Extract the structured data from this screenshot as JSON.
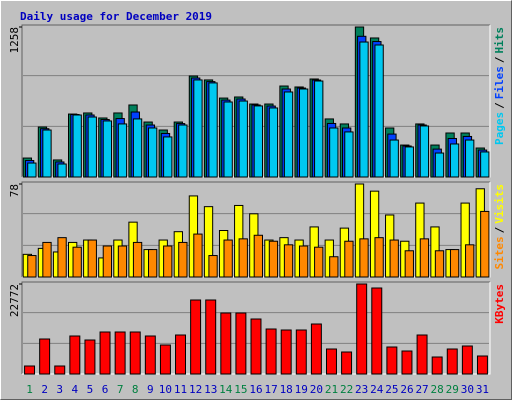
{
  "chart_data": [
    {
      "type": "bar",
      "title": "Daily usage for December 2019",
      "ylim": [
        0,
        1258
      ],
      "yticks": [
        1258
      ],
      "legend_separator": "/",
      "series": [
        {
          "name": "Hits",
          "color": "#00805c",
          "values": [
            159,
            419,
            143,
            528,
            537,
            495,
            537,
            604,
            461,
            394,
            461,
            847,
            814,
            662,
            671,
            612,
            612,
            763,
            755,
            822,
            487,
            445,
            1258,
            1166,
            411,
            268,
            445,
            268,
            369,
            369,
            243
          ]
        },
        {
          "name": "Files",
          "color": "#0040ff",
          "values": [
            138,
            405,
            126,
            524,
            520,
            482,
            490,
            545,
            436,
            365,
            448,
            830,
            800,
            645,
            654,
            604,
            595,
            738,
            746,
            813,
            449,
            411,
            1180,
            1136,
            360,
            260,
            436,
            234,
            323,
            340,
            226
          ]
        },
        {
          "name": "Pages",
          "color": "#00c8f0",
          "values": [
            117,
            394,
            109,
            520,
            503,
            470,
            445,
            487,
            411,
            336,
            436,
            814,
            789,
            629,
            637,
            596,
            579,
            713,
            738,
            805,
            411,
            378,
            1132,
            1107,
            310,
            252,
            428,
            201,
            277,
            310,
            210
          ]
        }
      ]
    },
    {
      "type": "bar",
      "ylim": [
        0,
        78
      ],
      "yticks": [
        78
      ],
      "legend_separator": "/",
      "series": [
        {
          "name": "Visits",
          "color": "#ffff00",
          "values": [
            19,
            24,
            21,
            29,
            31,
            16,
            31,
            46,
            23,
            31,
            38,
            68,
            59,
            39,
            60,
            53,
            31,
            33,
            31,
            42,
            31,
            41,
            78,
            72,
            52,
            30,
            62,
            42,
            23,
            62,
            74
          ]
        },
        {
          "name": "Sites",
          "color": "#ff8800",
          "values": [
            18,
            29,
            33,
            25,
            31,
            26,
            26,
            29,
            23,
            26,
            29,
            36,
            18,
            31,
            32,
            35,
            30,
            27,
            26,
            25,
            17,
            30,
            32,
            33,
            31,
            22,
            32,
            22,
            23,
            27,
            55
          ]
        }
      ]
    },
    {
      "type": "bar",
      "ylim": [
        0,
        22772
      ],
      "yticks": [
        22772
      ],
      "categories": [
        "1",
        "2",
        "3",
        "4",
        "5",
        "6",
        "7",
        "8",
        "9",
        "10",
        "11",
        "12",
        "13",
        "14",
        "15",
        "16",
        "17",
        "18",
        "19",
        "20",
        "21",
        "22",
        "23",
        "24",
        "25",
        "26",
        "27",
        "28",
        "29",
        "30",
        "31"
      ],
      "category_colors": [
        "#008040",
        "#0000c0",
        "#0000c0",
        "#0000c0",
        "#0000c0",
        "#0000c0",
        "#008040",
        "#008040",
        "#0000c0",
        "#0000c0",
        "#0000c0",
        "#0000c0",
        "#0000c0",
        "#008040",
        "#008040",
        "#0000c0",
        "#0000c0",
        "#0000c0",
        "#0000c0",
        "#0000c0",
        "#008040",
        "#008040",
        "#0000c0",
        "#0000c0",
        "#0000c0",
        "#0000c0",
        "#0000c0",
        "#008040",
        "#008040",
        "#0000c0",
        "#0000c0"
      ],
      "series": [
        {
          "name": "KBytes",
          "color": "#ff0000",
          "values": [
            2024,
            8855,
            2024,
            9615,
            8602,
            10627,
            10627,
            10627,
            9615,
            7337,
            9868,
            18723,
            18723,
            15434,
            15434,
            13916,
            11386,
            11133,
            11133,
            12651,
            6325,
            5566,
            22772,
            21760,
            6831,
            5819,
            9868,
            4301,
            6325,
            7084,
            4554
          ]
        }
      ]
    }
  ]
}
